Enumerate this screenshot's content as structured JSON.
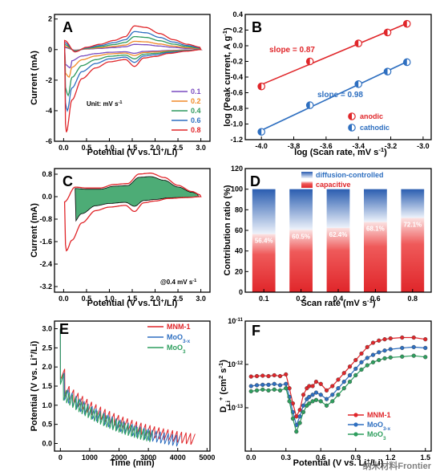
{
  "figure": {
    "watermark": "纳米材料Frontier"
  },
  "chart_data": [
    {
      "panel": "A",
      "type": "line",
      "xlabel": "Potential (V vs. Li⁺/Li)",
      "ylabel": "Current (mA)",
      "xlim": [
        -0.2,
        3.2
      ],
      "ylim": [
        -6,
        2.3
      ],
      "xticks": [
        0.0,
        0.5,
        1.0,
        1.5,
        2.0,
        2.5,
        3.0
      ],
      "yticks": [
        -6,
        -4,
        -2,
        0,
        2
      ],
      "unit_note": "Unit: mV s⁻¹",
      "series": [
        {
          "name": "0.1",
          "color": "#7a4cc0",
          "scale": 0.22,
          "cathodic_peak": [
            0.15,
            -1.2
          ]
        },
        {
          "name": "0.2",
          "color": "#f08a28",
          "scale": 0.35,
          "cathodic_peak": [
            0.12,
            -1.8
          ]
        },
        {
          "name": "0.4",
          "color": "#2f9a5e",
          "scale": 0.55,
          "cathodic_peak": [
            0.1,
            -3.0
          ]
        },
        {
          "name": "0.6",
          "color": "#2e6fc0",
          "scale": 0.76,
          "cathodic_peak": [
            0.08,
            -4.0
          ]
        },
        {
          "name": "0.8",
          "color": "#e0262a",
          "scale": 1.0,
          "cathodic_peak": [
            0.06,
            -5.4
          ]
        }
      ]
    },
    {
      "panel": "B",
      "type": "scatter",
      "xlabel": "log (Scan rate, mV s⁻¹)",
      "ylabel": "log (Peak current, A g⁻¹)",
      "xlim": [
        -4.1,
        -2.95
      ],
      "ylim": [
        -1.2,
        0.4
      ],
      "xticks": [
        -4.0,
        -3.8,
        -3.6,
        -3.4,
        -3.2,
        -3.0
      ],
      "yticks": [
        -1.2,
        -1.0,
        -0.8,
        -0.6,
        -0.4,
        -0.2,
        0.0,
        0.2,
        0.4
      ],
      "legend": [
        "anodic",
        "cathodic"
      ],
      "series": [
        {
          "name": "anodic",
          "color": "#e0262a",
          "slope_label": "slope = 0.87",
          "x": [
            -4.0,
            -3.7,
            -3.4,
            -3.22,
            -3.1
          ],
          "y": [
            -0.52,
            -0.2,
            0.03,
            0.17,
            0.28
          ]
        },
        {
          "name": "cathodic",
          "color": "#2e6fc0",
          "slope_label": "slope = 0.98",
          "x": [
            -4.0,
            -3.7,
            -3.4,
            -3.22,
            -3.1
          ],
          "y": [
            -1.1,
            -0.76,
            -0.49,
            -0.33,
            -0.21
          ]
        }
      ]
    },
    {
      "panel": "C",
      "type": "area",
      "xlabel": "Potential (V vs. Li⁺/Li)",
      "ylabel": "Current (mA)",
      "xlim": [
        -0.2,
        3.2
      ],
      "ylim": [
        -3.4,
        1.0
      ],
      "xticks": [
        0.0,
        0.5,
        1.0,
        1.5,
        2.0,
        2.5,
        3.0
      ],
      "yticks": [
        -3.2,
        -2.4,
        -1.6,
        -0.8,
        0.0,
        0.8
      ],
      "annotation": "@0.4 mV s⁻¹",
      "outline_color": "#e0262a",
      "fill_color": "#2e9e5e"
    },
    {
      "panel": "D",
      "type": "bar",
      "xlabel": "Scan rate (mV s⁻¹)",
      "ylabel": "Contribution ratio (%)",
      "ylim": [
        0,
        120
      ],
      "yticks": [
        0,
        20,
        40,
        60,
        80,
        100,
        120
      ],
      "categories": [
        "0.1",
        "0.2",
        "0.4",
        "0.6",
        "0.8"
      ],
      "legend": [
        "diffusion-controlled",
        "capacitive"
      ],
      "series": [
        {
          "name": "capacitive",
          "color": "#e0262a",
          "values": [
            56.4,
            60.5,
            62.4,
            68.1,
            72.1
          ],
          "labels": [
            "56.4%",
            "60.5%",
            "62.4%",
            "68.1%",
            "72.1%"
          ]
        },
        {
          "name": "diffusion-controlled",
          "color": "#2e6fc0",
          "values": [
            43.6,
            39.5,
            37.6,
            31.9,
            27.9
          ]
        }
      ]
    },
    {
      "panel": "E",
      "type": "line",
      "xlabel": "Time (min)",
      "ylabel": "Potential (V vs. Li⁺/Li)",
      "xlim": [
        -200,
        5100
      ],
      "ylim": [
        -0.2,
        3.2
      ],
      "xticks": [
        0,
        1000,
        2000,
        3000,
        4000,
        5000
      ],
      "yticks": [
        0.0,
        0.5,
        1.0,
        1.5,
        2.0,
        2.5,
        3.0
      ],
      "series": [
        {
          "name": "MNM-1",
          "color": "#e0262a",
          "x_end": 4600
        },
        {
          "name": "MoO3-x",
          "display_name": "MoO",
          "sub": "3-x",
          "color": "#2e6fc0",
          "x_end": 4100
        },
        {
          "name": "MoO3",
          "display_name": "MoO",
          "sub": "3",
          "color": "#2e9e5e",
          "x_end": 3150
        }
      ]
    },
    {
      "panel": "F",
      "type": "line",
      "xlabel": "Potential (V vs. Li⁺/Li)",
      "ylabel": "D_Li⁺ (cm² s⁻¹)",
      "yscale": "log",
      "xlim": [
        -0.05,
        1.55
      ],
      "ylim_exp": [
        -14,
        -11
      ],
      "xticks": [
        0.0,
        0.3,
        0.6,
        0.9,
        1.2,
        1.5
      ],
      "yticks_exp": [
        -13,
        -12,
        -11
      ],
      "series": [
        {
          "name": "MNM-1",
          "color": "#e0262a",
          "x": [
            0.0,
            0.05,
            0.1,
            0.15,
            0.2,
            0.25,
            0.3,
            0.33,
            0.36,
            0.39,
            0.42,
            0.45,
            0.48,
            0.5,
            0.53,
            0.56,
            0.6,
            0.65,
            0.7,
            0.75,
            0.8,
            0.85,
            0.9,
            0.95,
            1.0,
            1.05,
            1.1,
            1.15,
            1.2,
            1.3,
            1.4,
            1.5
          ],
          "y": [
            -12.28,
            -12.27,
            -12.26,
            -12.27,
            -12.25,
            -12.27,
            -12.23,
            -12.55,
            -12.9,
            -13.2,
            -13.05,
            -12.7,
            -12.55,
            -12.5,
            -12.5,
            -12.4,
            -12.45,
            -12.6,
            -12.5,
            -12.35,
            -12.2,
            -12.05,
            -11.9,
            -11.75,
            -11.6,
            -11.5,
            -11.45,
            -11.42,
            -11.4,
            -11.38,
            -11.38,
            -11.42
          ]
        },
        {
          "name": "MoO3-x",
          "display_name": "MoO",
          "sub": "3-x",
          "color": "#2e6fc0",
          "x": [
            0.0,
            0.05,
            0.1,
            0.15,
            0.2,
            0.25,
            0.3,
            0.33,
            0.36,
            0.39,
            0.42,
            0.45,
            0.48,
            0.5,
            0.53,
            0.56,
            0.6,
            0.65,
            0.7,
            0.75,
            0.8,
            0.85,
            0.9,
            0.95,
            1.0,
            1.05,
            1.1,
            1.15,
            1.2,
            1.3,
            1.4,
            1.5
          ],
          "y": [
            -12.5,
            -12.48,
            -12.47,
            -12.47,
            -12.45,
            -12.48,
            -12.45,
            -12.75,
            -13.1,
            -13.4,
            -13.2,
            -12.95,
            -12.8,
            -12.75,
            -12.7,
            -12.65,
            -12.7,
            -12.8,
            -12.7,
            -12.55,
            -12.4,
            -12.25,
            -12.1,
            -11.95,
            -11.85,
            -11.78,
            -11.72,
            -11.68,
            -11.65,
            -11.62,
            -11.6,
            -11.62
          ]
        },
        {
          "name": "MoO3",
          "display_name": "MoO",
          "sub": "3",
          "color": "#2e9e5e",
          "x": [
            0.0,
            0.05,
            0.1,
            0.15,
            0.2,
            0.25,
            0.3,
            0.33,
            0.36,
            0.39,
            0.42,
            0.45,
            0.48,
            0.5,
            0.53,
            0.56,
            0.6,
            0.65,
            0.7,
            0.75,
            0.8,
            0.85,
            0.9,
            0.95,
            1.0,
            1.05,
            1.1,
            1.15,
            1.2,
            1.3,
            1.4,
            1.5
          ],
          "y": [
            -12.62,
            -12.6,
            -12.58,
            -12.6,
            -12.58,
            -12.6,
            -12.55,
            -12.85,
            -13.25,
            -13.55,
            -13.35,
            -13.1,
            -12.95,
            -12.9,
            -12.85,
            -12.82,
            -12.85,
            -12.95,
            -12.85,
            -12.7,
            -12.55,
            -12.4,
            -12.25,
            -12.12,
            -12.02,
            -11.95,
            -11.9,
            -11.86,
            -11.84,
            -11.82,
            -11.8,
            -11.83
          ]
        }
      ]
    }
  ]
}
